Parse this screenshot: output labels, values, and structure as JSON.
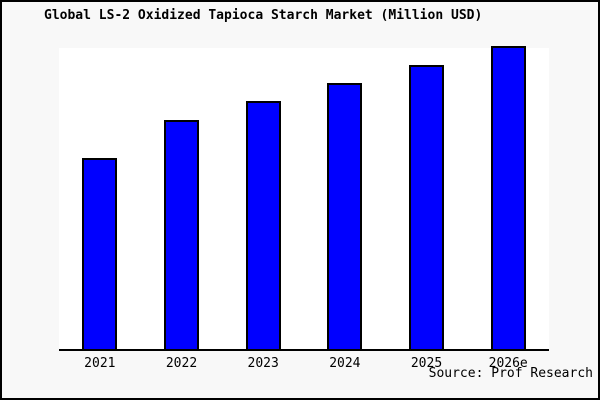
{
  "chart_data": {
    "type": "bar",
    "title": "Global LS-2 Oxidized Tapioca Starch Market (Million USD)",
    "categories": [
      "2021",
      "2022",
      "2023",
      "2024",
      "2025",
      "2026e"
    ],
    "values": [
      62.8,
      75.4,
      81.7,
      87.7,
      93.7,
      100
    ],
    "values_note": "y-axis is unlabeled in the chart; values are relative bar heights normalized to 2026e = 100",
    "xlabel": "",
    "ylabel": "",
    "ylim": [
      0,
      100
    ],
    "grid": false,
    "legend": "none",
    "source": "Source: Prof Research",
    "colors": {
      "bar_fill": "#0000ff",
      "bar_edge": "#000000",
      "plot_background": "#ffffff",
      "page_background": "#f8f8f8",
      "frame_border": "#000000",
      "axis_line": "#000000",
      "text": "#000000"
    }
  }
}
